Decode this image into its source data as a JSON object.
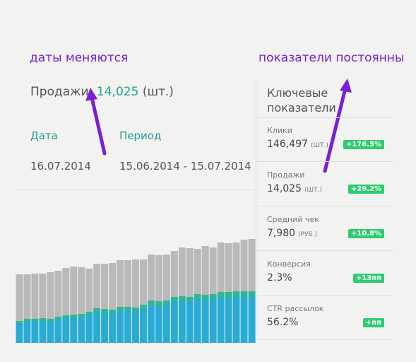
{
  "annotations": [
    "даты меняются",
    "показатели постоянны"
  ],
  "sales": {
    "label": "Продажи",
    "value": "14,025",
    "unit": "(шт.)"
  },
  "columns": {
    "date": "Дата",
    "period": "Период"
  },
  "row": {
    "date": "16.07.2014",
    "period": "15.06.2014 - 15.07.2014"
  },
  "kpi": {
    "title": "Ключевые показатели",
    "items": [
      {
        "label": "Клики",
        "value": "146,497",
        "unit": "(ШТ.)",
        "change": "+176.5%"
      },
      {
        "label": "Продажи",
        "value": "14,025",
        "unit": "(ШТ.)",
        "change": "+29.2%"
      },
      {
        "label": "Средний чек",
        "value": "7,980",
        "unit": "(РУБ.)",
        "change": "+10.8%"
      },
      {
        "label": "Конверсия",
        "value": "2.3%",
        "change": "+13пп"
      },
      {
        "label": "CTR рассылок",
        "value": "56.2%",
        "change": "+пп"
      }
    ]
  },
  "chart_data": {
    "type": "bar",
    "stacked": true,
    "ylim": [
      0,
      160
    ],
    "series": [
      {
        "color": "#29abd6",
        "values": [
          27,
          30,
          30,
          31,
          30,
          33,
          34,
          35,
          36,
          39,
          43,
          42,
          41,
          45,
          45,
          44,
          48,
          53,
          52,
          53,
          58,
          59,
          58,
          62,
          60,
          61,
          64,
          64,
          65,
          65,
          65
        ]
      },
      {
        "color": "#2fb59a",
        "values": [
          4,
          4,
          4,
          4,
          4,
          4,
          5,
          5,
          5,
          5,
          6,
          6,
          6,
          6,
          6,
          6,
          6,
          7,
          7,
          7,
          7,
          7,
          7,
          7,
          8,
          8,
          8,
          8,
          8,
          8,
          8
        ]
      },
      {
        "color": "#b9b9b9",
        "values": [
          66,
          63,
          64,
          63,
          66,
          65,
          67,
          68,
          66,
          61,
          63,
          64,
          66,
          66,
          66,
          68,
          64,
          65,
          65,
          65,
          65,
          69,
          69,
          64,
          69,
          66,
          70,
          69,
          69,
          73,
          74
        ]
      }
    ]
  }
}
